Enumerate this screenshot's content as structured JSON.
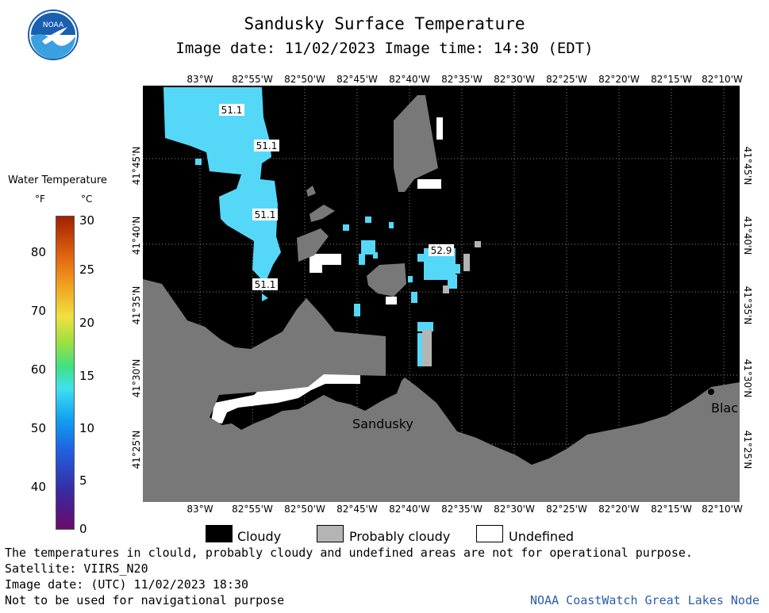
{
  "header": {
    "title": "Sandusky Surface Temperature",
    "subtitle": "Image date: 11/02/2023     Image time: 14:30 (EDT)",
    "logo_text": "NOAA"
  },
  "map": {
    "lon_labels": [
      "83°W",
      "82°55'W",
      "82°50'W",
      "82°45'W",
      "82°40'W",
      "82°35'W",
      "82°30'W",
      "82°25'W",
      "82°20'W",
      "82°15'W",
      "82°10'W"
    ],
    "lat_labels": [
      "41°45'N",
      "41°40'N",
      "41°35'N",
      "41°30'N",
      "41°25'N"
    ],
    "temp_labels": [
      "51.1",
      "51.1",
      "51.1",
      "51.1",
      "52.9"
    ],
    "place_labels": [
      "Sandusky",
      "Blac"
    ],
    "colors": {
      "water_cold": "#55d8f8",
      "land": "#787878",
      "cloudy": "#000000",
      "probably_cloudy": "#b4b4b4",
      "undefined": "#ffffff"
    }
  },
  "legend": {
    "title": "Water Temperature",
    "unit_f": "°F",
    "unit_c": "°C",
    "f_ticks": [
      "80",
      "70",
      "60",
      "50",
      "40"
    ],
    "c_ticks": [
      "30",
      "25",
      "20",
      "15",
      "10",
      "5",
      "0"
    ],
    "categories": [
      "Cloudy",
      "Probably cloudy",
      "Undefined"
    ]
  },
  "footer": {
    "line1": "The temperatures in clould, probably cloudy and undefined areas are not for operational purpose.",
    "line2": "Satellite: VIIRS_N20",
    "line3": "Image date: (UTC) 11/02/2023  18:30",
    "line4": "Not to be used for navigational purpose",
    "credit": "NOAA CoastWatch Great Lakes Node"
  }
}
